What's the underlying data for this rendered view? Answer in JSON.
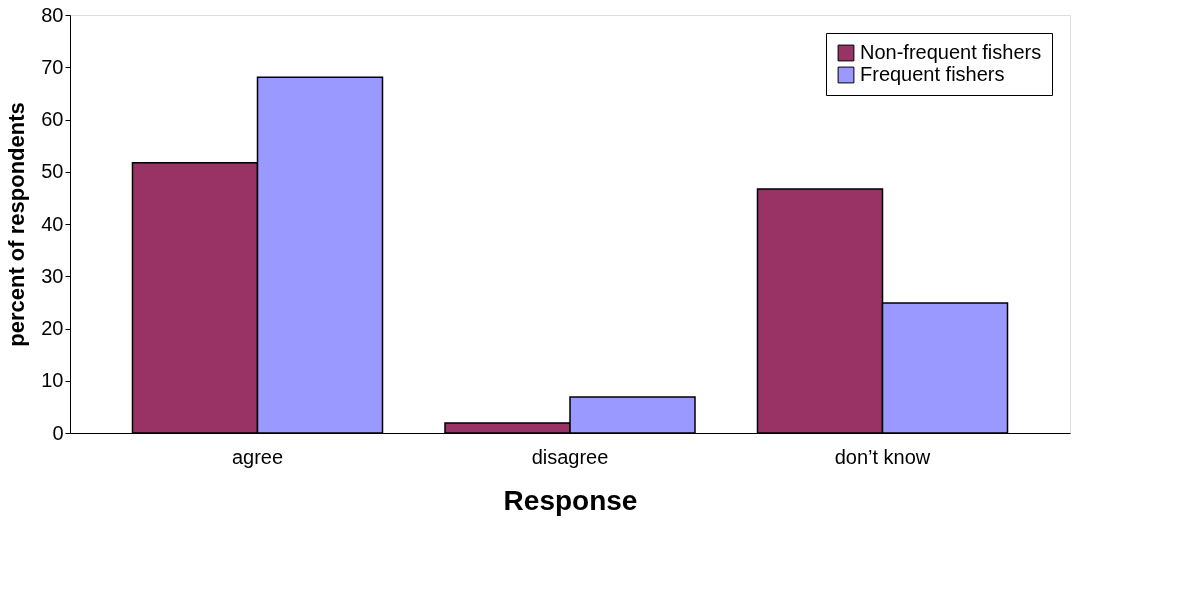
{
  "chart_data": {
    "type": "bar",
    "xlabel": "Response",
    "ylabel": "percent of respondents",
    "categories": [
      "agree",
      "disagree",
      "don’t know"
    ],
    "series": [
      {
        "name": "Non-frequent fishers",
        "color": "#993366",
        "values": [
          51.7,
          1.9,
          46.7
        ]
      },
      {
        "name": "Frequent fishers",
        "color": "#9999ff",
        "values": [
          68.1,
          6.9,
          24.9
        ]
      }
    ],
    "ylim": [
      0,
      80
    ],
    "yticks": [
      0,
      10,
      20,
      30,
      40,
      50,
      60,
      70,
      80
    ],
    "grid": false,
    "legend": "top right"
  }
}
